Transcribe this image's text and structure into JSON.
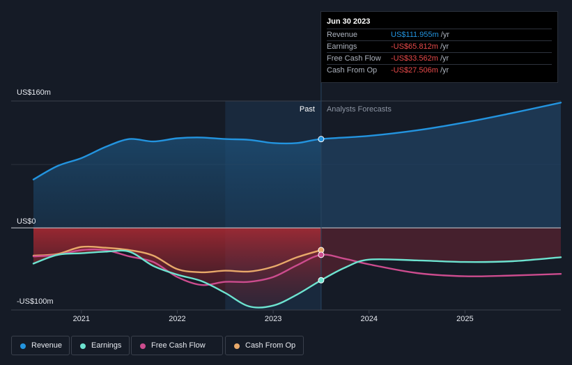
{
  "colors": {
    "revenue": "#2394df",
    "earnings": "#6de3d0",
    "free_cash_flow": "#cc4c8e",
    "cash_from_op": "#e8a96a",
    "background": "#151b26"
  },
  "tooltip": {
    "date": "Jun 30 2023",
    "rows": [
      {
        "name": "Revenue",
        "value": "US$111.955m",
        "unit": "/yr",
        "color": "#2394df"
      },
      {
        "name": "Earnings",
        "value": "-US$65.812m",
        "unit": "/yr",
        "color": "#e84a4a"
      },
      {
        "name": "Free Cash Flow",
        "value": "-US$33.562m",
        "unit": "/yr",
        "color": "#e84a4a"
      },
      {
        "name": "Cash From Op",
        "value": "-US$27.506m",
        "unit": "/yr",
        "color": "#e84a4a"
      }
    ]
  },
  "legend": [
    {
      "label": "Revenue",
      "color": "#2394df"
    },
    {
      "label": "Earnings",
      "color": "#6de3d0"
    },
    {
      "label": "Free Cash Flow",
      "color": "#cc4c8e"
    },
    {
      "label": "Cash From Op",
      "color": "#e8a96a"
    }
  ],
  "chart_data": {
    "type": "line",
    "y_tick_labels": [
      "US$160m",
      "US$0",
      "-US$100m"
    ],
    "x_tick_labels": [
      "2021",
      "2022",
      "2023",
      "2024",
      "2025"
    ],
    "region_labels": {
      "past": "Past",
      "forecast": "Analysts Forecasts"
    },
    "ylim": [
      -100,
      160
    ],
    "xlim": [
      2020.5,
      2026.0
    ],
    "past_end": 2023.5,
    "past_shade_start": 2022.5,
    "grid": true,
    "legend_position": "bottom-left",
    "series": [
      {
        "name": "Revenue",
        "x": [
          2020.5,
          2020.75,
          2021.0,
          2021.25,
          2021.5,
          2021.75,
          2022.0,
          2022.25,
          2022.5,
          2022.75,
          2023.0,
          2023.25,
          2023.5,
          2024.0,
          2024.5,
          2025.0,
          2025.5,
          2026.0
        ],
        "y": [
          61,
          78,
          88,
          102,
          112,
          109,
          113,
          114,
          112,
          111,
          107,
          107,
          112,
          116,
          123,
          133,
          145,
          158
        ]
      },
      {
        "name": "Earnings",
        "x": [
          2020.5,
          2020.75,
          2021.0,
          2021.25,
          2021.5,
          2021.75,
          2022.0,
          2022.25,
          2022.5,
          2022.75,
          2023.0,
          2023.25,
          2023.5,
          2023.75,
          2024.0,
          2024.5,
          2025.0,
          2025.5,
          2026.0
        ],
        "y": [
          -45,
          -34,
          -32,
          -30,
          -30,
          -48,
          -59,
          -67,
          -82,
          -99,
          -98,
          -84,
          -66,
          -50,
          -40,
          -41,
          -43,
          -42,
          -37
        ]
      },
      {
        "name": "Free Cash Flow",
        "x": [
          2020.5,
          2020.75,
          2021.0,
          2021.25,
          2021.5,
          2021.75,
          2022.0,
          2022.25,
          2022.5,
          2022.75,
          2023.0,
          2023.25,
          2023.5,
          2023.75,
          2024.0,
          2024.5,
          2025.0,
          2025.5,
          2026.0
        ],
        "y": [
          -36,
          -34,
          -28,
          -28,
          -36,
          -43,
          -62,
          -72,
          -68,
          -68,
          -62,
          -47,
          -34,
          -39,
          -46,
          -57,
          -61,
          -60,
          -58
        ]
      },
      {
        "name": "Cash From Op",
        "x": [
          2020.5,
          2020.75,
          2021.0,
          2021.25,
          2021.5,
          2021.75,
          2022.0,
          2022.25,
          2022.5,
          2022.75,
          2023.0,
          2023.25,
          2023.5
        ],
        "y": [
          -35,
          -33,
          -24,
          -25,
          -28,
          -35,
          -52,
          -56,
          -54,
          -55,
          -49,
          -37,
          -28
        ]
      }
    ]
  }
}
